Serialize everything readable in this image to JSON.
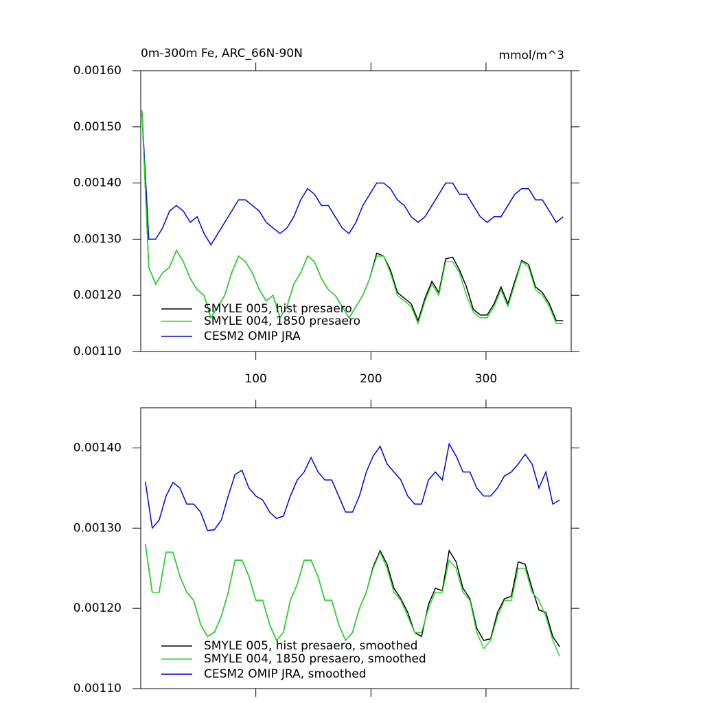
{
  "chart_data": [
    {
      "type": "line",
      "title": "0m-300m Fe, ARC_66N-90N",
      "units": "mmol/m^3",
      "x": [
        1,
        7,
        13,
        19,
        25,
        31,
        37,
        43,
        49,
        55,
        61,
        67,
        73,
        79,
        85,
        91,
        97,
        103,
        109,
        115,
        121,
        127,
        133,
        139,
        145,
        151,
        157,
        163,
        169,
        175,
        181,
        187,
        193,
        199,
        205,
        211,
        217,
        223,
        229,
        235,
        241,
        247,
        253,
        259,
        265,
        271,
        277,
        283,
        289,
        295,
        301,
        307,
        313,
        319,
        325,
        331,
        337,
        343,
        349,
        355,
        361,
        367
      ],
      "xlim": [
        0,
        374
      ],
      "xticks": [
        100,
        200,
        300
      ],
      "ylim": [
        0.0011,
        0.0016
      ],
      "yticks": [
        {
          "value": 0.0011,
          "label": "0.00110"
        },
        {
          "value": 0.0012,
          "label": "0.00120"
        },
        {
          "value": 0.0013,
          "label": "0.00130"
        },
        {
          "value": 0.0014,
          "label": "0.00140"
        },
        {
          "value": 0.0015,
          "label": "0.00150"
        },
        {
          "value": 0.0016,
          "label": "0.00160"
        }
      ],
      "series": [
        {
          "name": "SMYLE 005, hist presaero",
          "color": "#000000",
          "values": [
            0.00153,
            0.00125,
            0.00122,
            0.00124,
            0.00125,
            0.00128,
            0.00126,
            0.00123,
            0.00121,
            0.0012,
            0.00116,
            0.00118,
            0.0012,
            0.00124,
            0.00127,
            0.00126,
            0.00124,
            0.00121,
            0.00119,
            0.0012,
            0.00116,
            0.00118,
            0.00122,
            0.00124,
            0.00127,
            0.00126,
            0.00123,
            0.00121,
            0.0012,
            0.00118,
            0.00116,
            0.00118,
            0.0012,
            0.00123,
            0.001275,
            0.00127,
            0.001245,
            0.001205,
            0.001195,
            0.001185,
            0.001155,
            0.001195,
            0.001225,
            0.001205,
            0.001265,
            0.001268,
            0.001245,
            0.001215,
            0.001175,
            0.001165,
            0.001165,
            0.001185,
            0.001215,
            0.001185,
            0.001225,
            0.001262,
            0.001255,
            0.001215,
            0.001205,
            0.001185,
            0.001155,
            0.001155
          ]
        },
        {
          "name": "SMYLE 004, 1850 presaero",
          "color": "#22dd22",
          "values": [
            0.00153,
            0.00125,
            0.00122,
            0.00124,
            0.00125,
            0.00128,
            0.00126,
            0.00123,
            0.00121,
            0.0012,
            0.00116,
            0.00118,
            0.0012,
            0.00124,
            0.00127,
            0.00126,
            0.00124,
            0.00121,
            0.00119,
            0.0012,
            0.00116,
            0.00118,
            0.00122,
            0.00124,
            0.00127,
            0.00126,
            0.00123,
            0.00121,
            0.0012,
            0.00118,
            0.00116,
            0.00118,
            0.0012,
            0.00123,
            0.00127,
            0.00127,
            0.00124,
            0.0012,
            0.00119,
            0.00118,
            0.00115,
            0.00119,
            0.00122,
            0.0012,
            0.00126,
            0.00126,
            0.00124,
            0.0012,
            0.00117,
            0.00116,
            0.00116,
            0.00118,
            0.00121,
            0.00118,
            0.00122,
            0.00126,
            0.00125,
            0.00121,
            0.0012,
            0.00118,
            0.00115,
            0.00115
          ]
        },
        {
          "name": "CESM2 OMIP JRA",
          "color": "#0000dd",
          "values": [
            0.00153,
            0.0013,
            0.0013,
            0.00132,
            0.00135,
            0.00136,
            0.00135,
            0.00133,
            0.00134,
            0.00131,
            0.00129,
            0.00131,
            0.00133,
            0.00135,
            0.00137,
            0.00137,
            0.00136,
            0.00135,
            0.00133,
            0.00132,
            0.00131,
            0.00132,
            0.00134,
            0.00137,
            0.00139,
            0.00138,
            0.00136,
            0.00136,
            0.00134,
            0.00132,
            0.00131,
            0.00133,
            0.00136,
            0.00138,
            0.0014,
            0.0014,
            0.00139,
            0.00137,
            0.00136,
            0.00134,
            0.00133,
            0.00134,
            0.00136,
            0.00138,
            0.0014,
            0.0014,
            0.00138,
            0.00138,
            0.00136,
            0.00134,
            0.00133,
            0.00134,
            0.00134,
            0.00136,
            0.00138,
            0.00139,
            0.00139,
            0.00137,
            0.00137,
            0.00135,
            0.00133,
            0.00134
          ]
        }
      ]
    },
    {
      "type": "line",
      "x": [
        4,
        10,
        16,
        22,
        28,
        34,
        40,
        46,
        52,
        58,
        64,
        70,
        76,
        82,
        88,
        94,
        100,
        106,
        112,
        118,
        124,
        130,
        136,
        142,
        148,
        154,
        160,
        166,
        172,
        178,
        184,
        190,
        196,
        202,
        208,
        214,
        220,
        226,
        232,
        238,
        244,
        250,
        256,
        262,
        268,
        274,
        280,
        286,
        292,
        298,
        304,
        310,
        316,
        322,
        328,
        334,
        340,
        346,
        352,
        358,
        364
      ],
      "xlim": [
        0,
        374
      ],
      "xticks": [
        100,
        200,
        300
      ],
      "ylim": [
        0.0011,
        0.00145
      ],
      "yticks": [
        {
          "value": 0.0011,
          "label": "0.00110"
        },
        {
          "value": 0.0012,
          "label": "0.00120"
        },
        {
          "value": 0.0013,
          "label": "0.00130"
        },
        {
          "value": 0.0014,
          "label": "0.00140"
        }
      ],
      "series": [
        {
          "name": "SMYLE 005, hist presaero, smoothed",
          "color": "#000000",
          "values": [
            0.00128,
            0.00122,
            0.00122,
            0.00127,
            0.00127,
            0.00124,
            0.00122,
            0.00121,
            0.00118,
            0.001165,
            0.00117,
            0.00119,
            0.00122,
            0.00126,
            0.00126,
            0.00124,
            0.00121,
            0.00121,
            0.00118,
            0.00116,
            0.00117,
            0.00121,
            0.00123,
            0.00126,
            0.00126,
            0.00124,
            0.00121,
            0.00121,
            0.00118,
            0.00116,
            0.00117,
            0.0012,
            0.00122,
            0.001252,
            0.001272,
            0.001255,
            0.001225,
            0.001212,
            0.001195,
            0.00117,
            0.001165,
            0.001205,
            0.001225,
            0.001222,
            0.001272,
            0.001258,
            0.001225,
            0.001212,
            0.001175,
            0.00116,
            0.001162,
            0.001195,
            0.001212,
            0.001215,
            0.001258,
            0.001255,
            0.001225,
            0.001198,
            0.001195,
            0.001165,
            0.001152
          ]
        },
        {
          "name": "SMYLE 004, 1850 presaero, smoothed",
          "color": "#22dd22",
          "values": [
            0.00128,
            0.00122,
            0.00122,
            0.00127,
            0.00127,
            0.00124,
            0.00122,
            0.00121,
            0.00118,
            0.001165,
            0.00117,
            0.00119,
            0.00122,
            0.00126,
            0.00126,
            0.00124,
            0.00121,
            0.00121,
            0.00118,
            0.00116,
            0.00117,
            0.00121,
            0.00123,
            0.00126,
            0.00126,
            0.00124,
            0.00121,
            0.00121,
            0.00118,
            0.00116,
            0.00117,
            0.0012,
            0.00122,
            0.00125,
            0.00127,
            0.00125,
            0.00122,
            0.00121,
            0.00119,
            0.00117,
            0.00117,
            0.0012,
            0.00122,
            0.00122,
            0.00126,
            0.00125,
            0.00122,
            0.00121,
            0.00117,
            0.00115,
            0.00116,
            0.00119,
            0.00121,
            0.00121,
            0.00125,
            0.00125,
            0.00122,
            0.00121,
            0.00119,
            0.00116,
            0.00114
          ]
        },
        {
          "name": "CESM2 OMIP JRA, smoothed",
          "color": "#0000dd",
          "values": [
            0.001358,
            0.0013,
            0.00131,
            0.00134,
            0.001357,
            0.00135,
            0.00133,
            0.00133,
            0.00132,
            0.001297,
            0.001298,
            0.00131,
            0.00134,
            0.001367,
            0.001372,
            0.00135,
            0.00134,
            0.001335,
            0.00132,
            0.001312,
            0.001315,
            0.00134,
            0.00136,
            0.00137,
            0.001388,
            0.00137,
            0.00136,
            0.00136,
            0.00134,
            0.00132,
            0.00132,
            0.00134,
            0.00137,
            0.00139,
            0.001402,
            0.00138,
            0.00137,
            0.00136,
            0.00134,
            0.00133,
            0.00133,
            0.00136,
            0.00137,
            0.00136,
            0.001405,
            0.00139,
            0.00137,
            0.00137,
            0.00135,
            0.00134,
            0.00134,
            0.00135,
            0.001365,
            0.00137,
            0.00138,
            0.001392,
            0.00138,
            0.00135,
            0.00137,
            0.00133,
            0.001335
          ]
        }
      ]
    }
  ]
}
